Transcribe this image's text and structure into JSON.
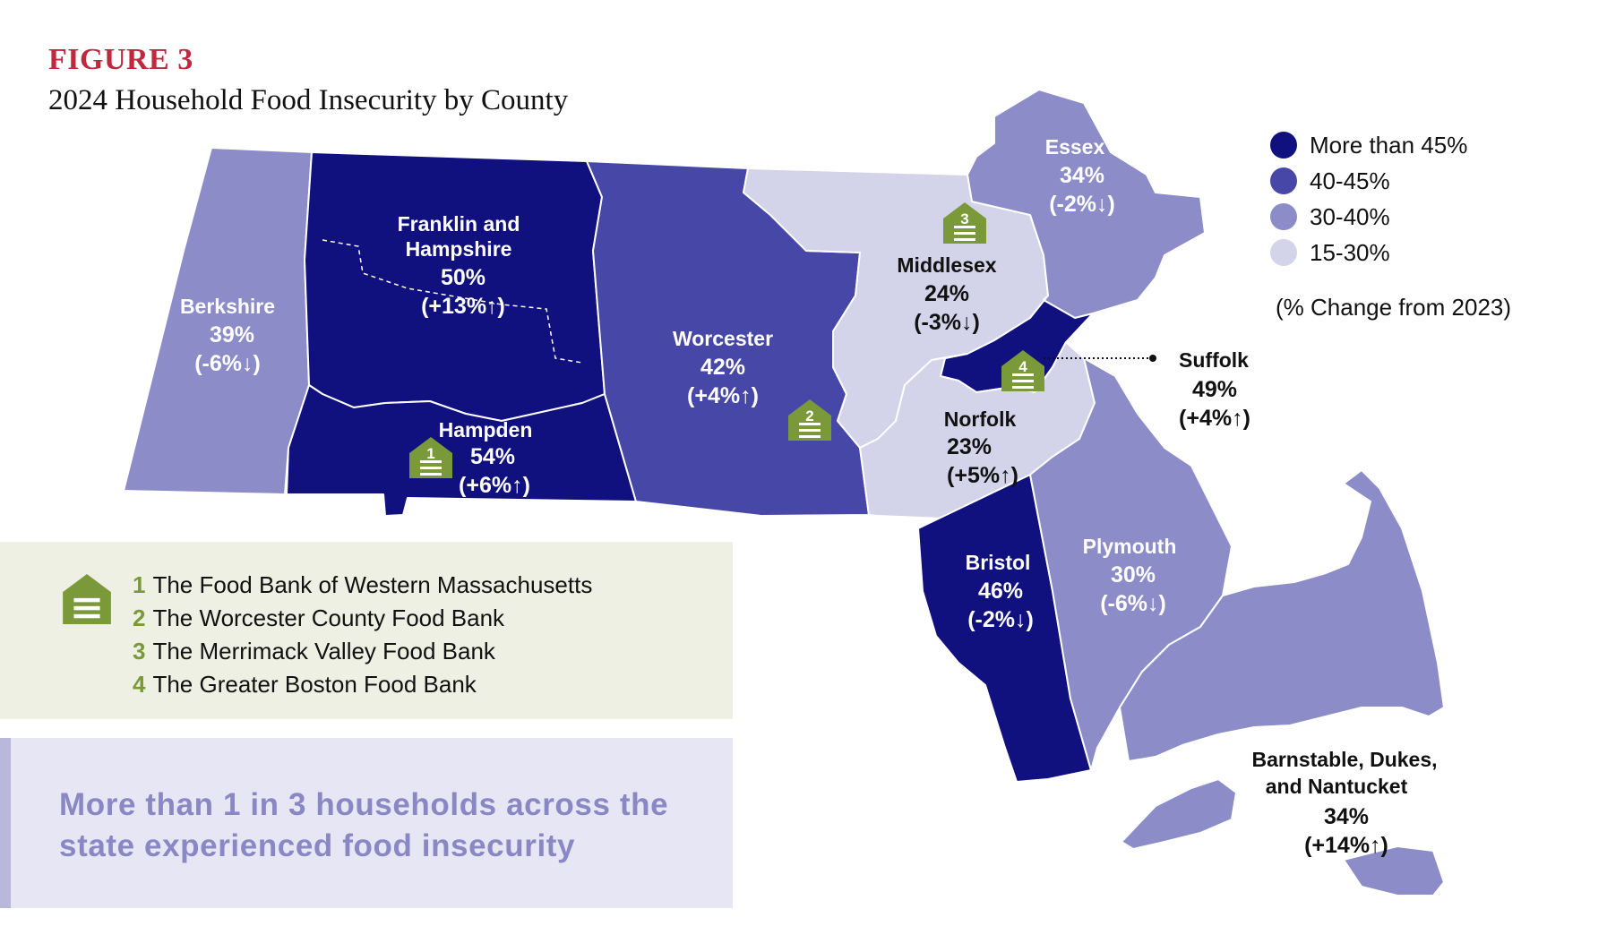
{
  "header": {
    "figure_label": "FIGURE 3",
    "title": "2024 Household Food Insecurity by County"
  },
  "colors": {
    "more_than_45": "#10107f",
    "range_40_45": "#4747a8",
    "range_30_40": "#8c8cc8",
    "range_15_30": "#d3d3ea",
    "food_bank_green": "#7a9a3a",
    "figure_label_red": "#c0283f",
    "callout_text": "#8a88c4"
  },
  "legend": {
    "items": [
      {
        "label": "More than 45%",
        "color": "#10107f"
      },
      {
        "label": "40-45%",
        "color": "#4747a8"
      },
      {
        "label": "30-40%",
        "color": "#8c8cc8"
      },
      {
        "label": "15-30%",
        "color": "#d3d3ea"
      }
    ],
    "note": "(% Change from 2023)"
  },
  "counties": [
    {
      "name": "Berkshire",
      "pct": "39%",
      "change": "(-6%↓)",
      "bin": "30-40%"
    },
    {
      "name": "Franklin and Hampshire",
      "pct": "50%",
      "change": "(+13%↑)",
      "bin": "More than 45%"
    },
    {
      "name": "Hampden",
      "pct": "54%",
      "change": "(+6%↑)",
      "bin": "More than 45%"
    },
    {
      "name": "Worcester",
      "pct": "42%",
      "change": "(+4%↑)",
      "bin": "40-45%"
    },
    {
      "name": "Middlesex",
      "pct": "24%",
      "change": "(-3%↓)",
      "bin": "15-30%"
    },
    {
      "name": "Essex",
      "pct": "34%",
      "change": "(-2%↓)",
      "bin": "30-40%"
    },
    {
      "name": "Suffolk",
      "pct": "49%",
      "change": "(+4%↑)",
      "bin": "More than 45%"
    },
    {
      "name": "Norfolk",
      "pct": "23%",
      "change": "(+5%↑)",
      "bin": "15-30%"
    },
    {
      "name": "Bristol",
      "pct": "46%",
      "change": "(-2%↓)",
      "bin": "More than 45%"
    },
    {
      "name": "Plymouth",
      "pct": "30%",
      "change": "(-6%↓)",
      "bin": "30-40%"
    },
    {
      "name": "Barnstable, Dukes, and Nantucket",
      "pct": "34%",
      "change": "(+14%↑)",
      "bin": "30-40%"
    }
  ],
  "food_banks": [
    {
      "num": "1",
      "name": "The Food Bank of Western Massachusetts"
    },
    {
      "num": "2",
      "name": "The Worcester County Food Bank"
    },
    {
      "num": "3",
      "name": "The Merrimack Valley Food Bank"
    },
    {
      "num": "4",
      "name": "The Greater Boston Food Bank"
    }
  ],
  "callout": {
    "text": "More than 1 in 3 households across the state experienced food insecurity"
  }
}
